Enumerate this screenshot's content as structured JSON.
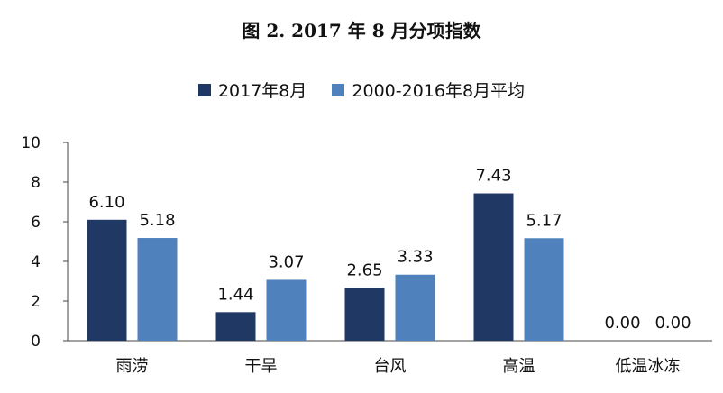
{
  "chart_data": {
    "type": "bar",
    "title": "图 2. 2017 年 8 月分项指数",
    "categories": [
      "雨涝",
      "干旱",
      "台风",
      "高温",
      "低温冰冻"
    ],
    "series": [
      {
        "name": "2017年8月",
        "values": [
          6.1,
          1.44,
          2.65,
          7.43,
          0.0
        ],
        "labels": [
          "6.10",
          "1.44",
          "2.65",
          "7.43",
          "0.00"
        ],
        "color": "#1F3864"
      },
      {
        "name": "2000-2016年8月平均",
        "values": [
          5.18,
          3.07,
          3.33,
          5.17,
          0.0
        ],
        "labels": [
          "5.18",
          "3.07",
          "3.33",
          "5.17",
          "0.00"
        ],
        "color": "#4F81BD"
      }
    ],
    "ylim": [
      0,
      10
    ],
    "yticks": [
      "0",
      "2",
      "4",
      "6",
      "8",
      "10"
    ],
    "legend": "top-center",
    "grid": false
  }
}
